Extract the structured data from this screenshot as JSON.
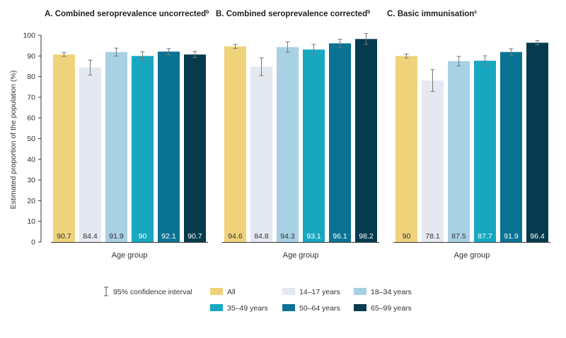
{
  "chart_data": {
    "type": "bar",
    "ylabel": "Estimated proportion of the population (%)",
    "xlabel": "Age group",
    "ylim": [
      0,
      100
    ],
    "yticks": [
      "0",
      "10",
      "20",
      "30",
      "40",
      "50",
      "60",
      "70",
      "80",
      "90",
      "100"
    ],
    "grid": false,
    "legend_position": "bottom",
    "categories": [
      "All",
      "14–17 years",
      "18–34 years",
      "35–49 years",
      "50–64 years",
      "65–99 years"
    ],
    "colors": [
      "#efd27a",
      "#e4e8f1",
      "#a8d1e3",
      "#17a8c0",
      "#0a7394",
      "#063b4f"
    ],
    "label_colors": [
      "#333333",
      "#333333",
      "#333333",
      "#ffffff",
      "#ffffff",
      "#ffffff"
    ],
    "error_bar_color": "#777777",
    "panels": [
      {
        "title": "A. Combined seroprevalence uncorrected",
        "sup": "b",
        "xlabel": "Age group",
        "values": [
          90.7,
          84.4,
          91.9,
          90,
          92.1,
          90.7
        ],
        "labels": [
          "90.7",
          "84.4",
          "91.9",
          "90",
          "92.1",
          "90.7"
        ],
        "ci_low": [
          89.7,
          80.8,
          90.0,
          88.0,
          90.6,
          89.2
        ],
        "ci_high": [
          91.7,
          88.0,
          93.8,
          92.0,
          93.6,
          92.2
        ]
      },
      {
        "title": "B. Combined seroprevalence corrected",
        "sup": "b",
        "xlabel": "Age group",
        "values": [
          94.6,
          84.8,
          94.3,
          93.1,
          96.1,
          98.2
        ],
        "labels": [
          "94.6",
          "84.8",
          "94.3",
          "93.1",
          "96.1",
          "98.2"
        ],
        "ci_low": [
          93.6,
          80.5,
          91.8,
          90.6,
          94.1,
          95.6
        ],
        "ci_high": [
          95.6,
          89.1,
          96.8,
          95.6,
          98.1,
          100.8
        ]
      },
      {
        "title": "C. Basic immunisation",
        "sup": "c",
        "xlabel": "Age group",
        "values": [
          90,
          78.1,
          87.5,
          87.7,
          91.9,
          96.4
        ],
        "labels": [
          "90",
          "78.1",
          "87.5",
          "87.7",
          "91.9",
          "96.4"
        ],
        "ci_low": [
          89.0,
          72.8,
          85.2,
          85.3,
          90.3,
          95.4
        ],
        "ci_high": [
          91.0,
          83.4,
          89.8,
          90.1,
          93.5,
          97.4
        ]
      }
    ],
    "legend": {
      "ci_label": "95% confidence interval",
      "items": [
        "All",
        "14–17 years",
        "18–34 years",
        "35–49 years",
        "50–64 years",
        "65–99 years"
      ]
    }
  }
}
